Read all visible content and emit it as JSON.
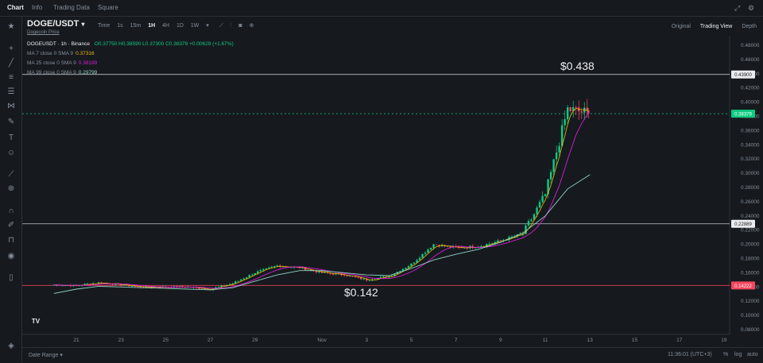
{
  "nav": {
    "tabs": [
      "Chart",
      "Info",
      "Trading Data",
      "Square"
    ],
    "icons": [
      "expand-icon",
      "settings-icon"
    ]
  },
  "header": {
    "pair": "DOGE/USDT",
    "pair_arrow": "▾",
    "subtitle": "Dogecoin Price",
    "intervals": [
      "Time",
      "1s",
      "15m",
      "1H",
      "4H",
      "1D",
      "1W",
      "▾"
    ],
    "active_interval": "1H",
    "views": [
      "Original",
      "Trading View",
      "Depth"
    ],
    "active_view": "Trading View"
  },
  "legend": {
    "symbol_line": "DOGEUSDT · 1h · Binance",
    "ohlc": "O0.37750 H0.38590 L0.37300 C0.38379 +0.00629 (+1.67%)",
    "ma7_label": "MA 7 close 0 SMA 9",
    "ma7_value": "0.37316",
    "ma25_label": "MA 25 close 0 SMA 9",
    "ma25_value": "0.38189",
    "ma99_label": "MA 99 close 0 SMA 9",
    "ma99_value": "0.29799"
  },
  "chart_data": {
    "type": "line",
    "series": [
      {
        "name": "DOGEUSDT",
        "color": "#26a69a"
      },
      {
        "name": "MA 7",
        "color": "#f0b90b"
      },
      {
        "name": "MA 25",
        "color": "#d81bd8"
      },
      {
        "name": "MA 99",
        "color": "#8fd3c4"
      }
    ],
    "x": [
      "Oct 20",
      "Oct 21",
      "Oct 22",
      "Oct 23",
      "Oct 24",
      "Oct 25",
      "Oct 26",
      "Oct 27",
      "Oct 28",
      "Oct 29",
      "Oct 30",
      "Oct 31",
      "Nov 1",
      "Nov 2",
      "Nov 3",
      "Nov 4",
      "Nov 5",
      "Nov 6",
      "Nov 7",
      "Nov 8",
      "Nov 9",
      "Nov 10",
      "Nov 11",
      "Nov 12",
      "Nov 13"
    ],
    "close": [
      0.143,
      0.142,
      0.146,
      0.143,
      0.14,
      0.14,
      0.14,
      0.137,
      0.145,
      0.16,
      0.17,
      0.167,
      0.16,
      0.157,
      0.15,
      0.155,
      0.172,
      0.2,
      0.195,
      0.197,
      0.205,
      0.215,
      0.27,
      0.39,
      0.384
    ],
    "ma99": [
      0.131,
      0.137,
      0.141,
      0.14,
      0.139,
      0.138,
      0.137,
      0.136,
      0.139,
      0.148,
      0.157,
      0.163,
      0.163,
      0.16,
      0.157,
      0.156,
      0.166,
      0.178,
      0.186,
      0.193,
      0.203,
      0.216,
      0.24,
      0.278,
      0.298
    ],
    "x_ticks": [
      "21",
      "23",
      "25",
      "27",
      "29",
      "Nov",
      "3",
      "5",
      "7",
      "9",
      "11",
      "13",
      "15",
      "17",
      "19"
    ],
    "y_ticks": [
      "0.48000",
      "0.46000",
      "0.44000",
      "0.42000",
      "0.40000",
      "0.38000",
      "0.36000",
      "0.34000",
      "0.32000",
      "0.30000",
      "0.28000",
      "0.26000",
      "0.24000",
      "0.22000",
      "0.20000",
      "0.18000",
      "0.16000",
      "0.14000",
      "0.12000",
      "0.10000",
      "0.08000"
    ],
    "ylim": [
      0.08,
      0.48
    ],
    "annotations": {
      "high_text": "$0.438",
      "low_text": "$0.142"
    },
    "lines": [
      {
        "value": 0.439,
        "label": "0.43900",
        "color": "#eaecef"
      },
      {
        "value": 0.2289,
        "label": "0.22889",
        "color": "#eaecef"
      },
      {
        "value": 0.1422,
        "label": "0.14222",
        "color": "#f6465d"
      }
    ],
    "current": {
      "value": 0.38379,
      "label": "0.38379",
      "color": "#0ecb81"
    }
  },
  "toolbar": {
    "tools": [
      "star-icon",
      "crosshair-icon",
      "trend-line-icon",
      "horizontal-lines-icon",
      "fib-icon",
      "pattern-icon",
      "brush-icon",
      "text-icon",
      "emoji-icon",
      "ruler-icon",
      "zoom-icon",
      "magnet-icon",
      "lock-draw-icon",
      "lock-icon",
      "visibility-icon",
      "trash-icon",
      "layers-icon"
    ]
  },
  "bottom": {
    "date_range": "Date Range",
    "date_range_arrow": "▾",
    "clock": "11:36:01 (UTC+3)",
    "percent": "%",
    "log": "log",
    "auto": "auto"
  },
  "logo_text": "TV"
}
